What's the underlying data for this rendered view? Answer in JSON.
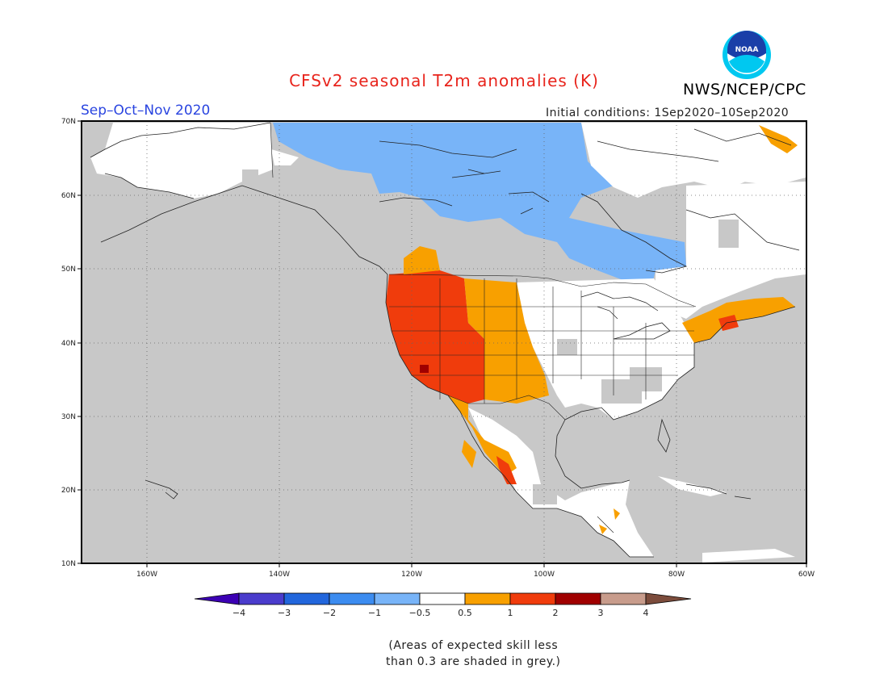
{
  "header": {
    "title": "CFSv2 seasonal T2m anomalies (K)",
    "agency": "NWS/NCEP/CPC",
    "logo_text": "NOAA",
    "period": "Sep–Oct–Nov 2020",
    "initial_conditions": "Initial conditions: 1Sep2020–10Sep2020"
  },
  "map": {
    "lon_labels": [
      "160W",
      "140W",
      "120W",
      "100W",
      "80W",
      "60W"
    ],
    "lat_labels": [
      "70N",
      "60N",
      "50N",
      "40N",
      "30N",
      "20N",
      "10N"
    ],
    "colors": {
      "ocean_grey": "#c8c8c8",
      "land_white": "#ffffff",
      "light_blue": "#78b4f8",
      "orange": "#f8a000",
      "red_orange": "#f03c0c",
      "dark_red": "#a00000"
    }
  },
  "colorbar": {
    "labels": [
      "−4",
      "−3",
      "−2",
      "−1",
      "−0.5",
      "0.5",
      "1",
      "2",
      "3",
      "4"
    ],
    "colors": [
      "#3c00b4",
      "#4a3ccc",
      "#2266dc",
      "#3c8cf0",
      "#78b4f8",
      "#ffffff",
      "#f8a000",
      "#f03c0c",
      "#a00000",
      "#c89c8c",
      "#7c4c3c"
    ]
  },
  "note": {
    "line1": "(Areas of expected skill less",
    "line2": "than 0.3 are shaded in grey.)"
  }
}
